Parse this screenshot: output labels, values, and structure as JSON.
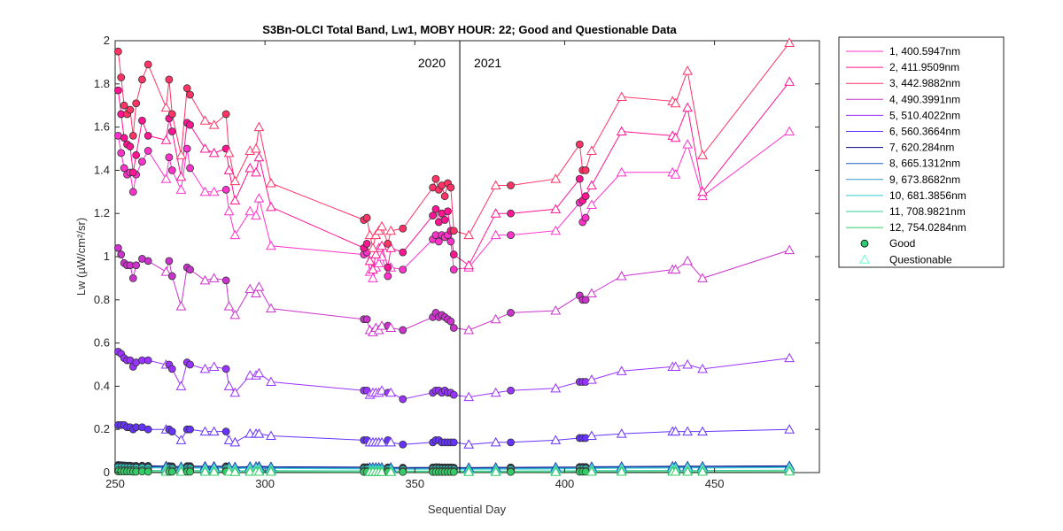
{
  "chart_data": {
    "type": "line",
    "title": "S3Bn-OLCI Total Band,  Lw1, MOBY HOUR: 22;  Good and Questionable Data",
    "xlabel": "Sequential Day",
    "ylabel": "Lw (µW/cm²/sr)",
    "xlim": [
      250,
      485
    ],
    "ylim": [
      0,
      2
    ],
    "x_ticks": [
      "250",
      "300",
      "350",
      "400",
      "450"
    ],
    "y_ticks": [
      "0",
      "0.2",
      "0.4",
      "0.6",
      "0.8",
      "1",
      "1.2",
      "1.4",
      "1.6",
      "1.8",
      "2"
    ],
    "grid": false,
    "legend_position": "outside-right",
    "year_divider": {
      "x": 365,
      "left_label": "2020",
      "right_label": "2021"
    },
    "x": [
      251,
      252,
      253,
      254,
      255,
      256,
      257,
      259,
      261,
      267,
      268,
      269,
      272,
      274,
      275,
      280,
      283,
      287,
      288,
      290,
      295,
      297,
      298,
      302,
      333,
      334,
      335,
      336,
      337,
      338,
      339,
      341,
      342,
      346,
      356,
      357,
      358,
      359,
      360,
      361,
      362,
      363,
      368,
      377,
      382,
      397,
      405,
      406,
      407,
      409,
      419,
      436,
      437,
      441,
      446,
      475
    ],
    "good_mask": [
      1,
      1,
      1,
      1,
      1,
      1,
      1,
      1,
      1,
      0,
      1,
      1,
      0,
      1,
      1,
      0,
      0,
      1,
      0,
      0,
      0,
      0,
      0,
      0,
      1,
      1,
      0,
      0,
      0,
      0,
      0,
      1,
      0,
      1,
      1,
      1,
      1,
      1,
      1,
      1,
      1,
      1,
      0,
      0,
      1,
      0,
      1,
      1,
      1,
      0,
      0,
      0,
      0,
      0,
      0,
      0
    ],
    "legend_markers": [
      {
        "label": "Good",
        "color": "#2ecc71",
        "shape": "circle"
      },
      {
        "label": "Questionable",
        "color": "#66ffcc",
        "shape": "triangle"
      }
    ],
    "series": [
      {
        "name": "1, 400.5947nm",
        "color": "#ff33cc",
        "values": [
          1.56,
          1.48,
          1.41,
          1.38,
          1.39,
          1.3,
          1.38,
          1.44,
          1.49,
          1.36,
          1.46,
          1.4,
          1.31,
          1.5,
          1.41,
          1.3,
          1.3,
          1.31,
          1.21,
          1.1,
          1.21,
          1.19,
          1.27,
          1.05,
          1.01,
          1.02,
          0.93,
          0.9,
          0.95,
          0.97,
          1.0,
          0.91,
          0.95,
          0.94,
          1.08,
          1.1,
          1.07,
          1.1,
          1.09,
          1.1,
          1.07,
          0.94,
          0.95,
          1.1,
          1.1,
          1.12,
          1.25,
          1.16,
          1.18,
          1.24,
          1.39,
          1.39,
          1.38,
          1.52,
          1.28,
          1.58
        ]
      },
      {
        "name": "2, 411.9509nm",
        "color": "#ff1493",
        "values": [
          1.77,
          1.66,
          1.55,
          1.52,
          1.51,
          1.39,
          1.47,
          1.63,
          1.56,
          1.54,
          1.64,
          1.58,
          1.37,
          1.62,
          1.61,
          1.5,
          1.48,
          1.5,
          1.4,
          1.26,
          1.41,
          1.39,
          1.46,
          1.23,
          1.04,
          1.06,
          0.98,
          0.94,
          1.01,
          1.04,
          1.05,
          0.95,
          1.04,
          1.02,
          1.19,
          1.22,
          1.16,
          1.2,
          1.17,
          1.21,
          1.12,
          1.01,
          0.96,
          1.2,
          1.2,
          1.22,
          1.36,
          1.26,
          1.28,
          1.33,
          1.58,
          1.56,
          1.55,
          1.69,
          1.3,
          1.81
        ]
      },
      {
        "name": "3, 442.9882nm",
        "color": "#ff3366",
        "values": [
          1.95,
          1.83,
          1.7,
          1.66,
          1.68,
          1.56,
          1.71,
          1.82,
          1.89,
          1.69,
          1.82,
          1.66,
          1.47,
          1.78,
          1.75,
          1.63,
          1.61,
          1.66,
          1.48,
          1.35,
          1.49,
          1.5,
          1.6,
          1.34,
          1.17,
          1.18,
          1.1,
          1.04,
          1.1,
          1.12,
          1.14,
          1.06,
          1.12,
          1.13,
          1.32,
          1.36,
          1.31,
          1.33,
          1.28,
          1.34,
          1.32,
          1.12,
          1.1,
          1.33,
          1.33,
          1.36,
          1.52,
          1.4,
          1.4,
          1.49,
          1.74,
          1.72,
          1.71,
          1.86,
          1.47,
          1.99
        ]
      },
      {
        "name": "4, 490.3991nm",
        "color": "#cc33cc",
        "values": [
          1.04,
          1.01,
          0.97,
          0.96,
          0.96,
          0.9,
          0.96,
          0.99,
          0.98,
          0.93,
          0.98,
          0.91,
          0.77,
          0.95,
          0.94,
          0.89,
          0.9,
          0.89,
          0.77,
          0.73,
          0.85,
          0.83,
          0.86,
          0.76,
          0.71,
          0.71,
          0.66,
          0.65,
          0.67,
          0.66,
          0.68,
          0.68,
          0.67,
          0.66,
          0.72,
          0.74,
          0.72,
          0.73,
          0.72,
          0.71,
          0.7,
          0.67,
          0.66,
          0.71,
          0.74,
          0.75,
          0.82,
          0.8,
          0.8,
          0.83,
          0.91,
          0.94,
          0.94,
          0.98,
          0.9,
          1.03
        ]
      },
      {
        "name": "5, 510.4022nm",
        "color": "#9933ff",
        "values": [
          0.56,
          0.55,
          0.53,
          0.52,
          0.52,
          0.49,
          0.51,
          0.52,
          0.52,
          0.5,
          0.5,
          0.48,
          0.4,
          0.51,
          0.5,
          0.48,
          0.49,
          0.48,
          0.4,
          0.37,
          0.45,
          0.45,
          0.46,
          0.42,
          0.38,
          0.38,
          0.36,
          0.37,
          0.37,
          0.37,
          0.38,
          0.37,
          0.37,
          0.34,
          0.37,
          0.38,
          0.38,
          0.37,
          0.38,
          0.37,
          0.37,
          0.36,
          0.35,
          0.37,
          0.38,
          0.39,
          0.42,
          0.42,
          0.42,
          0.43,
          0.47,
          0.49,
          0.49,
          0.5,
          0.48,
          0.53
        ]
      },
      {
        "name": "6, 560.3664nm",
        "color": "#6633ff",
        "values": [
          0.22,
          0.22,
          0.22,
          0.21,
          0.21,
          0.2,
          0.21,
          0.21,
          0.2,
          0.2,
          0.2,
          0.19,
          0.15,
          0.2,
          0.2,
          0.19,
          0.19,
          0.19,
          0.15,
          0.14,
          0.18,
          0.18,
          0.18,
          0.17,
          0.15,
          0.15,
          0.14,
          0.14,
          0.14,
          0.14,
          0.14,
          0.15,
          0.14,
          0.13,
          0.14,
          0.15,
          0.15,
          0.14,
          0.14,
          0.14,
          0.14,
          0.14,
          0.13,
          0.14,
          0.14,
          0.15,
          0.16,
          0.16,
          0.16,
          0.17,
          0.18,
          0.19,
          0.19,
          0.19,
          0.19,
          0.2
        ]
      },
      {
        "name": "7,  620.284nm",
        "color": "#000080",
        "values": [
          0.035,
          0.034,
          0.033,
          0.032,
          0.032,
          0.03,
          0.031,
          0.032,
          0.031,
          0.03,
          0.03,
          0.029,
          0.027,
          0.03,
          0.03,
          0.029,
          0.029,
          0.029,
          0.027,
          0.026,
          0.028,
          0.028,
          0.029,
          0.027,
          0.025,
          0.025,
          0.024,
          0.024,
          0.024,
          0.024,
          0.024,
          0.024,
          0.024,
          0.023,
          0.024,
          0.025,
          0.025,
          0.024,
          0.024,
          0.024,
          0.024,
          0.023,
          0.023,
          0.024,
          0.024,
          0.025,
          0.026,
          0.026,
          0.026,
          0.027,
          0.028,
          0.029,
          0.029,
          0.03,
          0.029,
          0.031
        ]
      },
      {
        "name": "8, 665.1312nm",
        "color": "#1f5fbf",
        "values": [
          0.03,
          0.03,
          0.029,
          0.028,
          0.028,
          0.026,
          0.027,
          0.028,
          0.027,
          0.026,
          0.026,
          0.025,
          0.024,
          0.026,
          0.026,
          0.025,
          0.025,
          0.025,
          0.024,
          0.023,
          0.025,
          0.025,
          0.025,
          0.024,
          0.022,
          0.022,
          0.021,
          0.021,
          0.021,
          0.021,
          0.021,
          0.021,
          0.021,
          0.02,
          0.021,
          0.022,
          0.022,
          0.021,
          0.021,
          0.021,
          0.021,
          0.02,
          0.02,
          0.021,
          0.021,
          0.022,
          0.023,
          0.023,
          0.023,
          0.024,
          0.025,
          0.026,
          0.026,
          0.027,
          0.026,
          0.028
        ]
      },
      {
        "name": "9, 673.8682nm",
        "color": "#3399cc",
        "values": [
          0.027,
          0.027,
          0.026,
          0.025,
          0.025,
          0.023,
          0.024,
          0.025,
          0.024,
          0.023,
          0.023,
          0.022,
          0.021,
          0.023,
          0.023,
          0.022,
          0.022,
          0.022,
          0.021,
          0.02,
          0.022,
          0.022,
          0.022,
          0.021,
          0.019,
          0.019,
          0.018,
          0.018,
          0.018,
          0.018,
          0.018,
          0.018,
          0.018,
          0.017,
          0.018,
          0.019,
          0.019,
          0.018,
          0.018,
          0.018,
          0.018,
          0.017,
          0.017,
          0.018,
          0.018,
          0.019,
          0.02,
          0.02,
          0.02,
          0.021,
          0.022,
          0.023,
          0.023,
          0.024,
          0.023,
          0.025
        ]
      },
      {
        "name": "10, 681.3856nm",
        "color": "#33cccc",
        "values": [
          0.025,
          0.025,
          0.024,
          0.023,
          0.023,
          0.021,
          0.022,
          0.023,
          0.022,
          0.021,
          0.021,
          0.02,
          0.019,
          0.021,
          0.021,
          0.02,
          0.02,
          0.02,
          0.019,
          0.018,
          0.02,
          0.02,
          0.02,
          0.019,
          0.017,
          0.017,
          0.016,
          0.016,
          0.016,
          0.016,
          0.016,
          0.016,
          0.016,
          0.015,
          0.016,
          0.017,
          0.017,
          0.016,
          0.016,
          0.016,
          0.016,
          0.015,
          0.015,
          0.016,
          0.016,
          0.017,
          0.018,
          0.018,
          0.018,
          0.019,
          0.02,
          0.021,
          0.021,
          0.022,
          0.021,
          0.023
        ]
      },
      {
        "name": "11, 708.9821nm",
        "color": "#33cc99",
        "values": [
          0.012,
          0.012,
          0.011,
          0.011,
          0.011,
          0.01,
          0.01,
          0.011,
          0.01,
          0.01,
          0.01,
          0.009,
          0.009,
          0.01,
          0.01,
          0.009,
          0.009,
          0.009,
          0.009,
          0.008,
          0.009,
          0.009,
          0.009,
          0.009,
          0.008,
          0.008,
          0.007,
          0.007,
          0.007,
          0.007,
          0.007,
          0.007,
          0.007,
          0.007,
          0.007,
          0.008,
          0.008,
          0.007,
          0.007,
          0.007,
          0.007,
          0.007,
          0.007,
          0.007,
          0.007,
          0.008,
          0.008,
          0.008,
          0.008,
          0.009,
          0.009,
          0.01,
          0.01,
          0.01,
          0.01,
          0.011
        ]
      },
      {
        "name": "12, 754.0284nm",
        "color": "#33cc66",
        "values": [
          0.005,
          0.005,
          0.005,
          0.005,
          0.005,
          0.004,
          0.004,
          0.005,
          0.004,
          0.004,
          0.004,
          0.004,
          0.004,
          0.004,
          0.004,
          0.004,
          0.004,
          0.004,
          0.004,
          0.003,
          0.004,
          0.004,
          0.004,
          0.004,
          0.003,
          0.003,
          0.003,
          0.003,
          0.003,
          0.003,
          0.003,
          0.003,
          0.003,
          0.003,
          0.003,
          0.003,
          0.003,
          0.003,
          0.003,
          0.003,
          0.003,
          0.003,
          0.003,
          0.003,
          0.003,
          0.003,
          0.004,
          0.004,
          0.004,
          0.004,
          0.004,
          0.004,
          0.004,
          0.004,
          0.004,
          0.005
        ]
      }
    ]
  }
}
